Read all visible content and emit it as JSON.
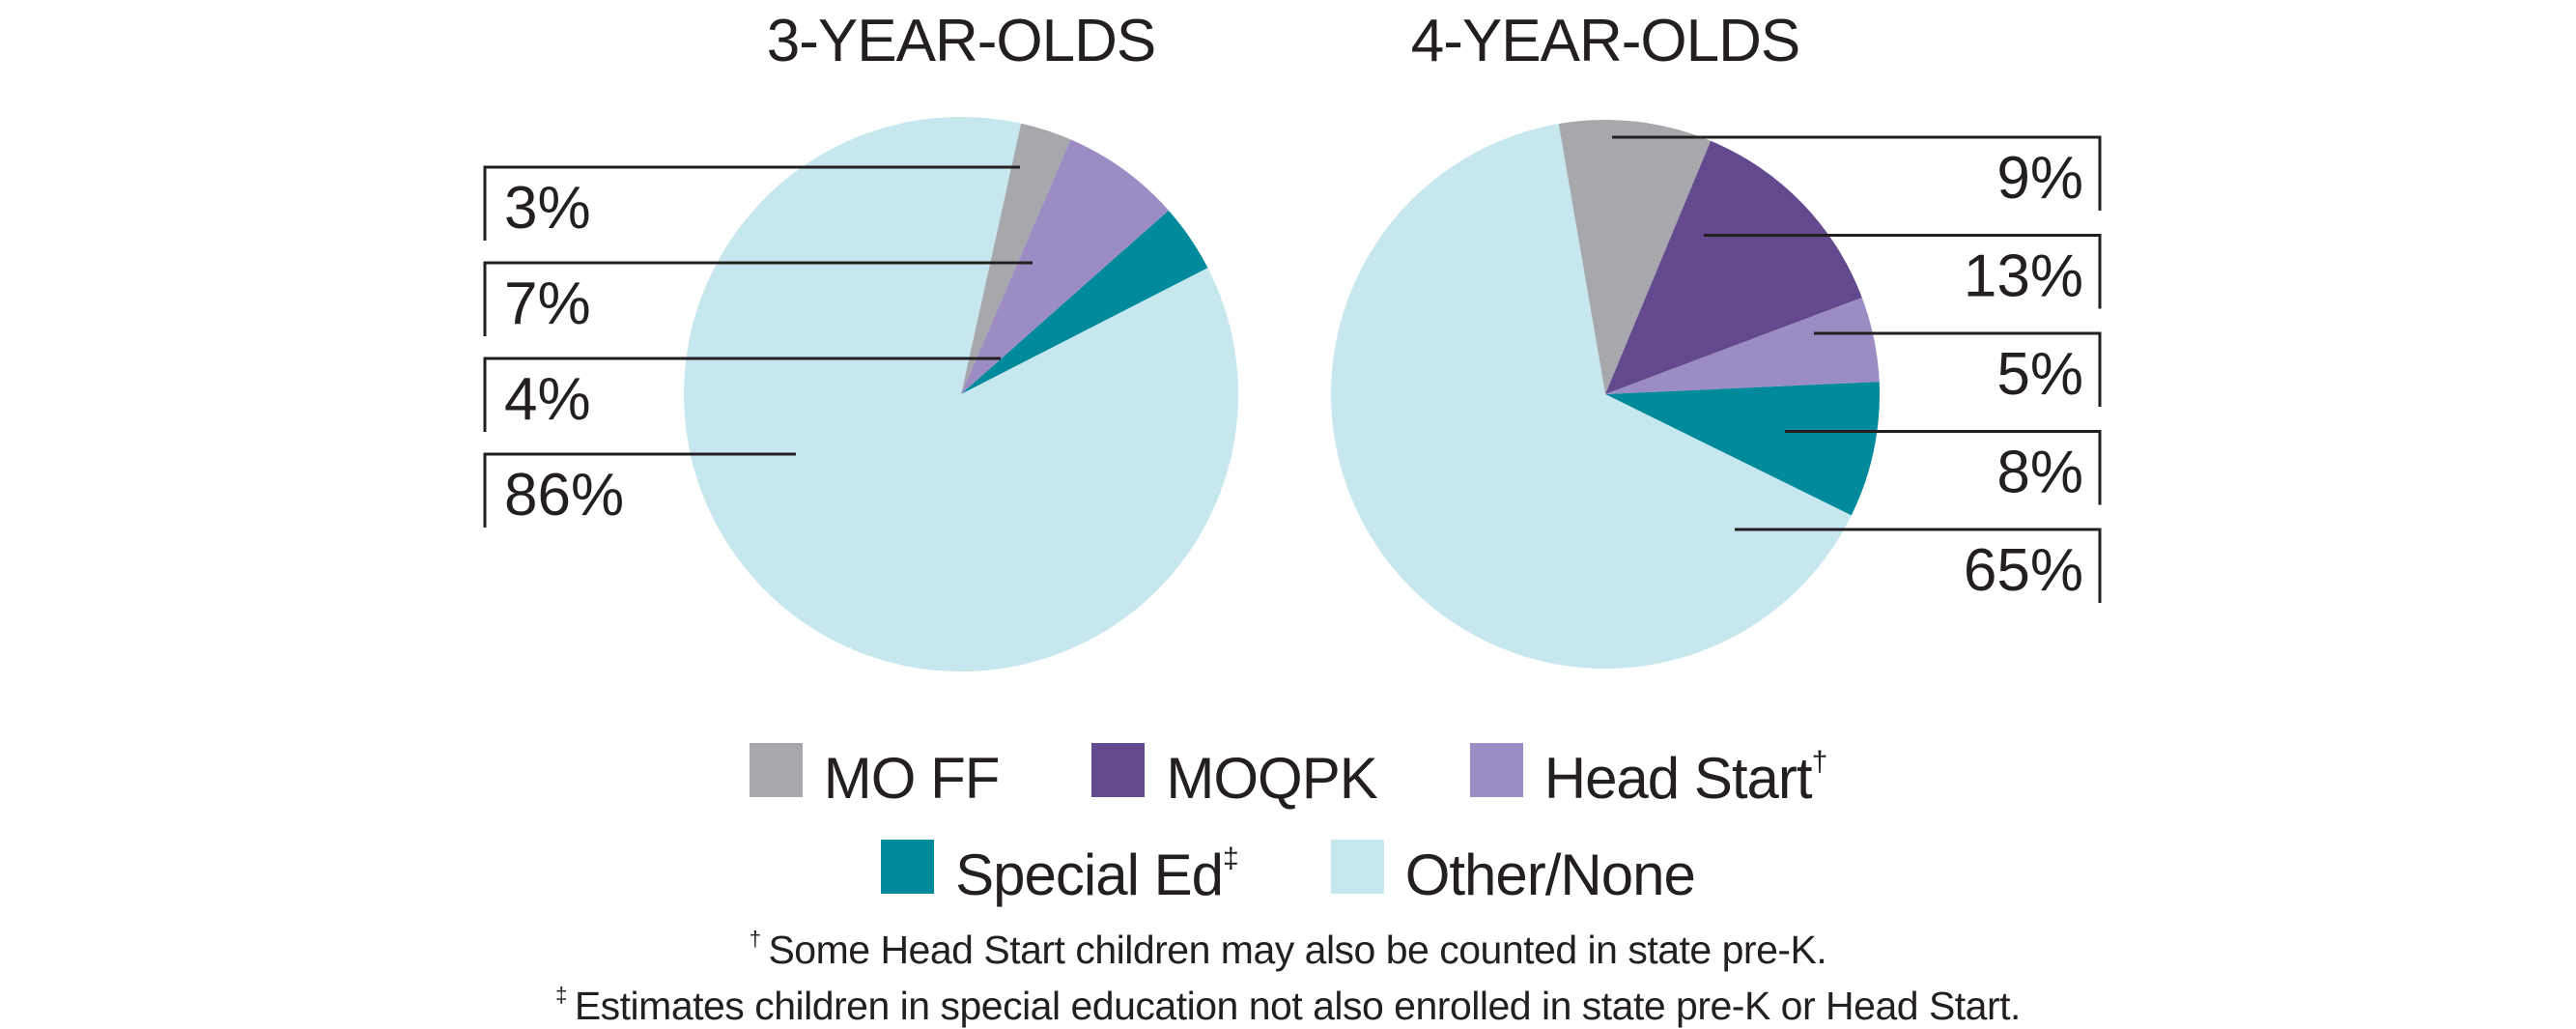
{
  "colors": {
    "mo_ff": "#a7a8ac",
    "moqpk": "#634a8f",
    "head_start": "#9b8dc3",
    "special_ed": "#008a9c",
    "other_none": "#c6e7ee",
    "text": "#231f20",
    "leader": "#231f20"
  },
  "chart_data": [
    {
      "type": "pie",
      "title": "3-YEAR-OLDS",
      "slices": [
        {
          "category": "MO FF",
          "key": "mo_ff",
          "value": 3,
          "label": "3%"
        },
        {
          "category": "Head Start",
          "key": "head_start",
          "value": 7,
          "label": "7%"
        },
        {
          "category": "Special Ed",
          "key": "special_ed",
          "value": 4,
          "label": "4%"
        },
        {
          "category": "Other/None",
          "key": "other_none",
          "value": 86,
          "label": "86%"
        }
      ],
      "label_side": "left"
    },
    {
      "type": "pie",
      "title": "4-YEAR-OLDS",
      "slices": [
        {
          "category": "MO FF",
          "key": "mo_ff",
          "value": 9,
          "label": "9%"
        },
        {
          "category": "MOQPK",
          "key": "moqpk",
          "value": 13,
          "label": "13%"
        },
        {
          "category": "Head Start",
          "key": "head_start",
          "value": 5,
          "label": "5%"
        },
        {
          "category": "Special Ed",
          "key": "special_ed",
          "value": 8,
          "label": "8%"
        },
        {
          "category": "Other/None",
          "key": "other_none",
          "value": 65,
          "label": "65%"
        }
      ],
      "label_side": "right"
    }
  ],
  "legend": {
    "row1": [
      {
        "key": "mo_ff",
        "label": "MO FF",
        "mark": ""
      },
      {
        "key": "moqpk",
        "label": "MOQPK",
        "mark": ""
      },
      {
        "key": "head_start",
        "label": "Head Start",
        "mark": "†"
      }
    ],
    "row2": [
      {
        "key": "special_ed",
        "label": "Special Ed",
        "mark": "‡"
      },
      {
        "key": "other_none",
        "label": "Other/None",
        "mark": ""
      }
    ]
  },
  "footnotes": [
    {
      "mark": "†",
      "text": "Some Head Start children may also be counted in state pre-K."
    },
    {
      "mark": "‡",
      "text": "Estimates children in special education not also enrolled in state pre-K or Head Start."
    }
  ]
}
